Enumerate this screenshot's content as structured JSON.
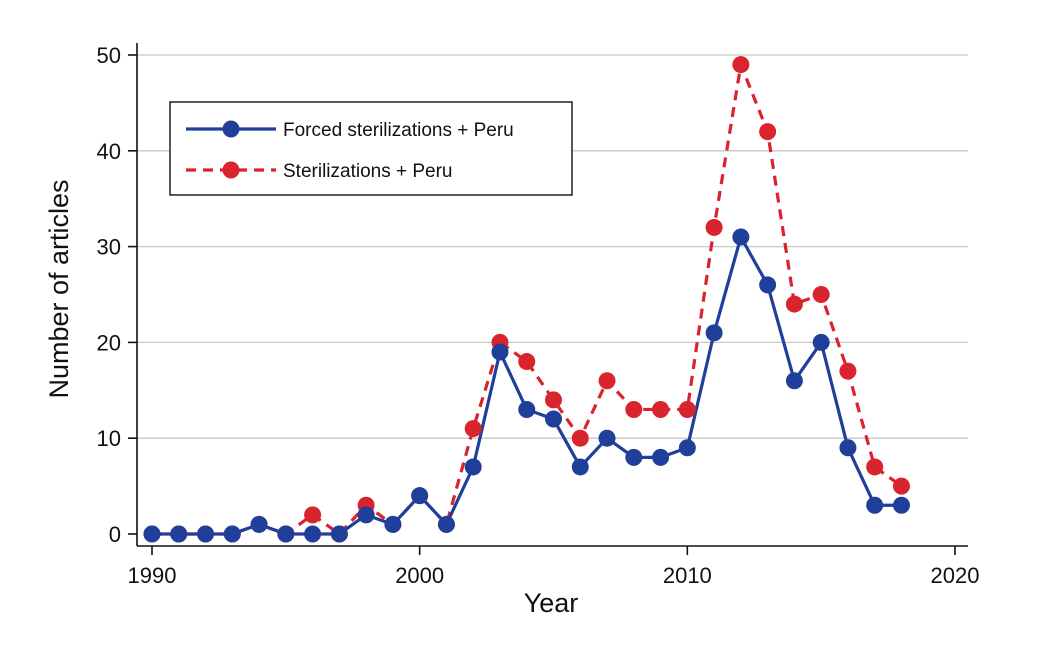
{
  "chart_data": {
    "type": "line",
    "title": "",
    "xlabel": "Year",
    "ylabel": "Number of articles",
    "xlim": [
      1990,
      2020
    ],
    "ylim": [
      0,
      50
    ],
    "xticks": [
      1990,
      2000,
      2010,
      2020
    ],
    "yticks": [
      0,
      10,
      20,
      30,
      40,
      50
    ],
    "grid": "horizontal",
    "legend_position": "top-left",
    "x": [
      1990,
      1991,
      1992,
      1993,
      1994,
      1995,
      1996,
      1997,
      1998,
      1999,
      2000,
      2001,
      2002,
      2003,
      2004,
      2005,
      2006,
      2007,
      2008,
      2009,
      2010,
      2011,
      2012,
      2013,
      2014,
      2015,
      2016,
      2017,
      2018
    ],
    "series": [
      {
        "name": "Forced sterilizations + Peru",
        "color": "#1f3f9a",
        "style": "solid",
        "values": [
          0,
          0,
          0,
          0,
          1,
          0,
          0,
          0,
          2,
          1,
          4,
          1,
          7,
          19,
          13,
          12,
          7,
          10,
          8,
          8,
          9,
          21,
          31,
          26,
          16,
          20,
          9,
          3,
          3
        ]
      },
      {
        "name": "Sterilizations + Peru",
        "color": "#d9232d",
        "style": "dashed",
        "values": [
          0,
          0,
          0,
          0,
          1,
          0,
          2,
          0,
          3,
          1,
          4,
          1,
          11,
          20,
          18,
          14,
          10,
          16,
          13,
          13,
          13,
          32,
          49,
          42,
          24,
          25,
          17,
          7,
          5
        ]
      }
    ]
  }
}
